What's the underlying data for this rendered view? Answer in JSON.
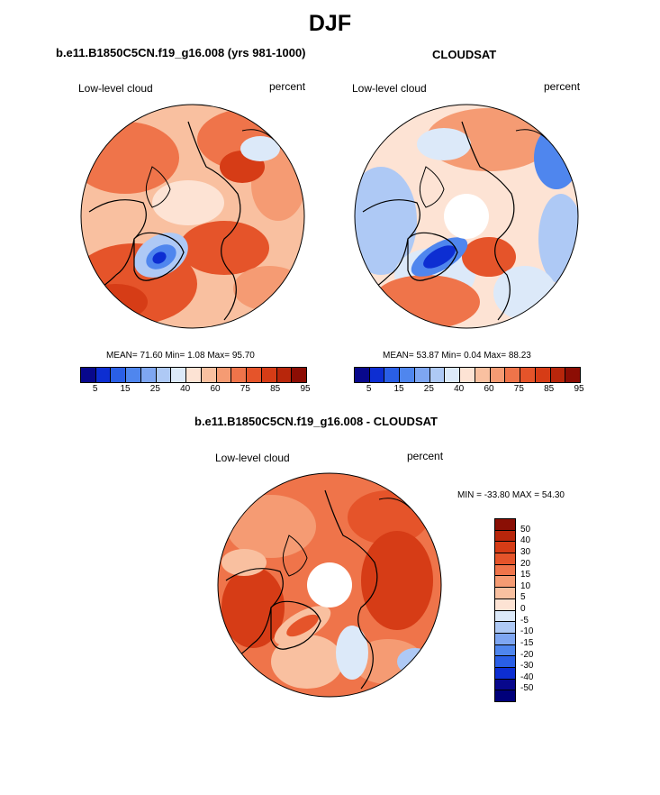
{
  "title": "DJF",
  "panels": [
    {
      "id": "model",
      "title": "b.e11.B1850C5CN.f19_g16.008 (yrs 981-1000)",
      "left_label": "Low-level cloud",
      "right_label": "percent",
      "stats": {
        "mean_label": "MEAN=",
        "mean": "71.60",
        "min_label": "Min=",
        "min": "1.08",
        "max_label": "Max=",
        "max": "95.70"
      }
    },
    {
      "id": "obs",
      "title": "CLOUDSAT",
      "left_label": "Low-level cloud",
      "right_label": "percent",
      "stats": {
        "mean_label": "MEAN=",
        "mean": "53.87",
        "min_label": "Min=",
        "min": "0.04",
        "max_label": "Max=",
        "max": "88.23"
      }
    },
    {
      "id": "diff",
      "title": "b.e11.B1850C5CN.f19_g16.008 - CLOUDSAT",
      "left_label": "Low-level cloud",
      "right_label": "percent",
      "minmax": "MIN = -33.80 MAX =  54.30"
    }
  ],
  "colorbar_abs": {
    "colors": [
      "#08088c",
      "#0d2ed2",
      "#2a5fe6",
      "#4f86ee",
      "#7ea6f2",
      "#aec9f5",
      "#dce9f9",
      "#fde3d4",
      "#f9c0a0",
      "#f59b73",
      "#ef744a",
      "#e5542a",
      "#d63c16",
      "#b8260b",
      "#8c0d04"
    ],
    "ticks": [
      "5",
      "15",
      "25",
      "40",
      "60",
      "75",
      "85",
      "95"
    ]
  },
  "colorbar_diff": {
    "colors": [
      "#8a0f05",
      "#b8260b",
      "#d63c16",
      "#e5542a",
      "#ef744a",
      "#f59b73",
      "#f9c0a0",
      "#fde3d4",
      "#dce9f9",
      "#aec9f5",
      "#7ea6f2",
      "#4f86ee",
      "#2a5fe6",
      "#0d2ed2",
      "#08088c",
      "#00007a"
    ],
    "ticks": [
      "50",
      "40",
      "30",
      "20",
      "15",
      "10",
      "5",
      "0",
      "-5",
      "-10",
      "-15",
      "-20",
      "-30",
      "-40",
      "-50"
    ]
  }
}
